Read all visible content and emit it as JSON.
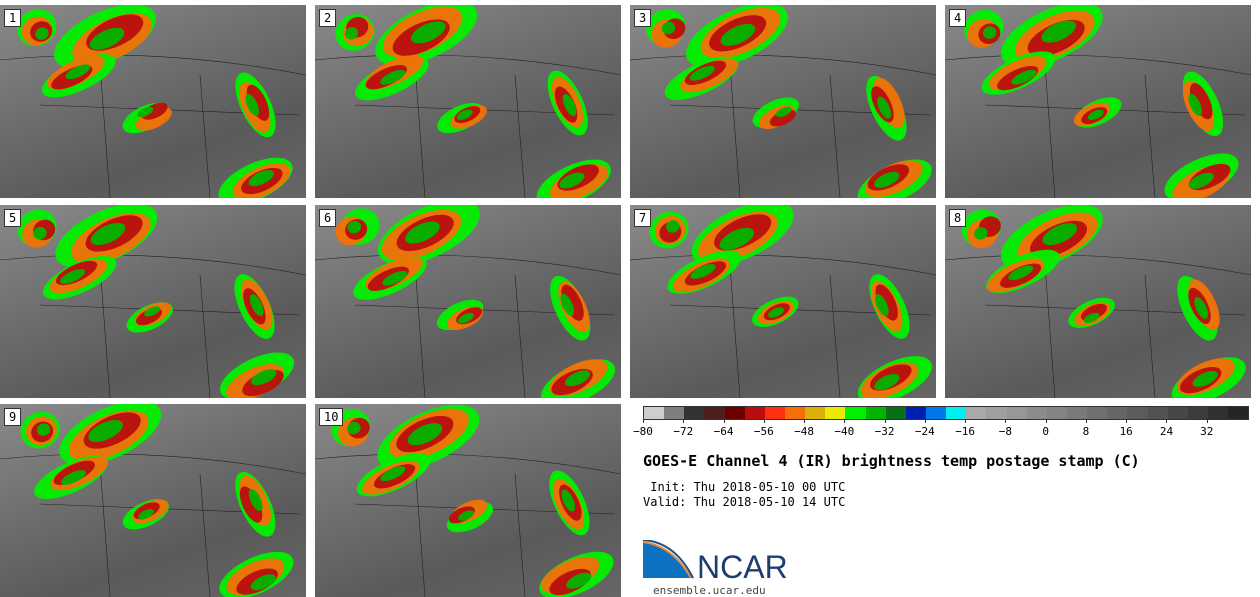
{
  "panels": [
    "1",
    "2",
    "3",
    "4",
    "5",
    "6",
    "7",
    "8",
    "9",
    "10"
  ],
  "colorbar": {
    "ticks": [
      "−80",
      "−72",
      "−64",
      "−56",
      "−48",
      "−40",
      "−32",
      "−24",
      "−16",
      "−8",
      "0",
      "8",
      "16",
      "24",
      "32"
    ],
    "range": [
      -80,
      40
    ],
    "step": 4,
    "colors": [
      "#cdcdcd",
      "#7f7f7f",
      "#333333",
      "#4e1f1f",
      "#6e0000",
      "#b80e0e",
      "#fd300f",
      "#f56e0a",
      "#dbb008",
      "#eaea08",
      "#00f000",
      "#00b400",
      "#077018",
      "#001eb0",
      "#0077e8",
      "#00f0f0",
      "#a9a9a9",
      "#a0a0a0",
      "#979797",
      "#8c8c8c",
      "#838383",
      "#7a7a7a",
      "#707070",
      "#666666",
      "#5c5c5c",
      "#525252",
      "#474747",
      "#3c3c3c",
      "#303030",
      "#252525"
    ]
  },
  "title": "GOES-E Channel 4 (IR) brightness temp postage stamp (C)",
  "init": " Init: Thu 2018-05-10 00 UTC",
  "valid": "Valid: Thu 2018-05-10 14 UTC",
  "logo": {
    "text": "NCAR",
    "url": "ensemble.ucar.edu"
  }
}
